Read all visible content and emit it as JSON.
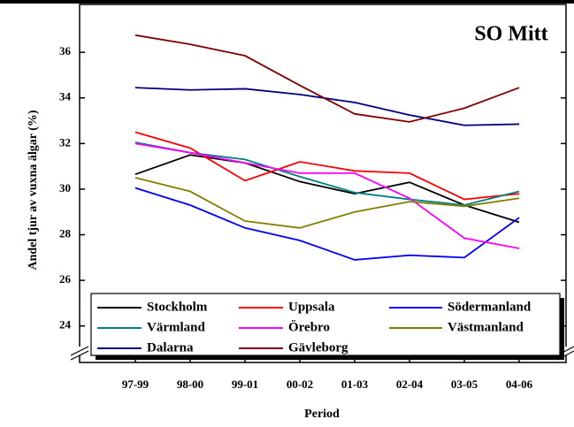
{
  "chart_data": {
    "type": "line",
    "title": "SO Mitt",
    "xlabel": "Period",
    "ylabel": "Andel tjur av vuxna älgar (%)",
    "categories": [
      "97-99",
      "98-00",
      "99-01",
      "00-02",
      "01-03",
      "02-04",
      "03-05",
      "04-06"
    ],
    "ylim": [
      22.4,
      38.1
    ],
    "yticks": [
      24,
      26,
      28,
      30,
      32,
      34,
      36
    ],
    "series": [
      {
        "name": "Stockholm",
        "color": "#000000",
        "values": [
          30.65,
          31.5,
          31.15,
          30.33,
          29.8,
          30.3,
          29.3,
          28.55
        ]
      },
      {
        "name": "Uppsala",
        "color": "#ff0000",
        "values": [
          32.5,
          31.8,
          30.37,
          31.2,
          30.8,
          30.7,
          29.55,
          29.8
        ]
      },
      {
        "name": "Södermanland",
        "color": "#0000ff",
        "values": [
          30.05,
          29.3,
          28.3,
          27.75,
          26.9,
          27.1,
          27.0,
          28.75
        ]
      },
      {
        "name": "Värmland",
        "color": "#008080",
        "values": [
          32.05,
          31.6,
          31.3,
          30.55,
          29.85,
          29.55,
          29.3,
          29.9
        ]
      },
      {
        "name": "Örebro",
        "color": "#ff00ff",
        "values": [
          32.0,
          31.6,
          31.15,
          30.7,
          30.7,
          29.6,
          27.85,
          27.4
        ]
      },
      {
        "name": "Västmanland",
        "color": "#808000",
        "values": [
          30.5,
          29.9,
          28.6,
          28.3,
          29.0,
          29.45,
          29.25,
          29.6
        ]
      },
      {
        "name": "Dalarna",
        "color": "#000080",
        "values": [
          34.45,
          34.35,
          34.4,
          34.15,
          33.8,
          33.25,
          32.8,
          32.85
        ]
      },
      {
        "name": "Gävleborg",
        "color": "#800000",
        "values": [
          36.75,
          36.35,
          35.85,
          34.55,
          33.3,
          32.95,
          33.55,
          34.45
        ]
      }
    ]
  }
}
